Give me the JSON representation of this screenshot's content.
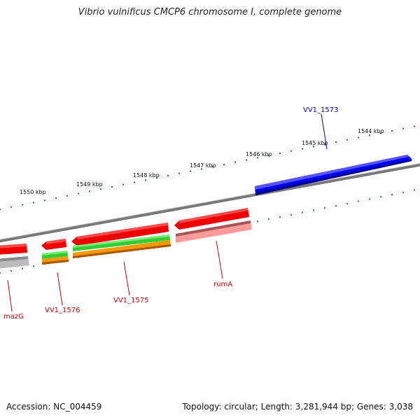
{
  "title": "Vibrio vulnificus CMCP6 chromosome I, complete genome",
  "footer": {
    "accession": "Accession: NC_004459",
    "topology": "Topology: circular; Length: 3,281,944 bp; Genes: 3,038"
  },
  "ticks": [
    {
      "label": "1544 kbp"
    },
    {
      "label": "1545 kbp"
    },
    {
      "label": "1546 kbp"
    },
    {
      "label": "1547 kbp"
    },
    {
      "label": "1548 kbp"
    },
    {
      "label": "1549 kbp"
    },
    {
      "label": "1550 kbp"
    }
  ],
  "genes": [
    {
      "name": "VV1_1573",
      "strand": "+",
      "color": "#0000cc"
    },
    {
      "name": "rumA",
      "strand": "-",
      "color": "#cc0000"
    },
    {
      "name": "VV1_1575",
      "strand": "-",
      "color": "#cc0000"
    },
    {
      "name": "VV1_1576",
      "strand": "-",
      "color": "#cc0000"
    },
    {
      "name": "mazG",
      "strand": "-",
      "color": "#cc0000"
    }
  ],
  "colors": {
    "backbone": "#888888",
    "cds": "#ff0000",
    "gene_plus": "#0000ff",
    "rna": "#ff9999",
    "misc": "#33cc33",
    "other": "#ff9900",
    "grey_feature": "#bbbbbb",
    "tick": "#2a7a2a"
  }
}
